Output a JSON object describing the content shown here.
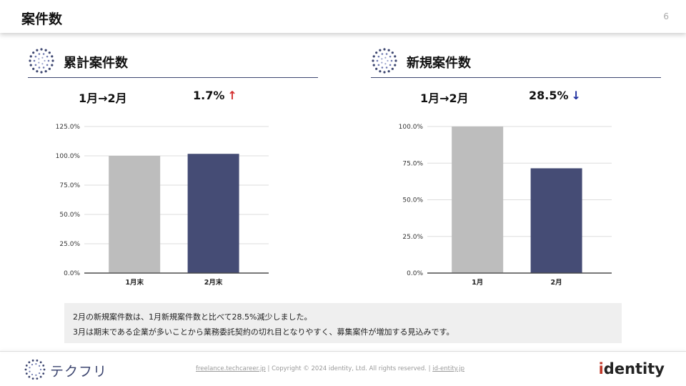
{
  "header": {
    "title": "案件数",
    "page_number": "6"
  },
  "colors": {
    "accent": "#3d4670",
    "bar_prev": "#bdbdbd",
    "bar_curr": "#454c75",
    "up": "#d32f2f",
    "down": "#1e2f9e"
  },
  "sections": [
    {
      "title": "累計案件数",
      "period": "1月→2月",
      "change": "1.7%",
      "direction": "up",
      "arrow": "↑",
      "chart_data": {
        "type": "bar",
        "categories": [
          "1月末",
          "2月末"
        ],
        "values": [
          100.0,
          101.7
        ],
        "yticks": [
          "0.0%",
          "25.0%",
          "50.0%",
          "75.0%",
          "100.0%",
          "125.0%"
        ],
        "ylim": [
          0,
          125
        ],
        "xlabel": "",
        "ylabel": "",
        "grid": true
      }
    },
    {
      "title": "新規案件数",
      "period": "1月→2月",
      "change": "28.5%",
      "direction": "down",
      "arrow": "↓",
      "chart_data": {
        "type": "bar",
        "categories": [
          "1月",
          "2月"
        ],
        "values": [
          100.0,
          71.5
        ],
        "yticks": [
          "0.0%",
          "25.0%",
          "50.0%",
          "75.0%",
          "100.0%"
        ],
        "ylim": [
          0,
          100
        ],
        "xlabel": "",
        "ylabel": "",
        "grid": true
      }
    }
  ],
  "note": {
    "line1": "2月の新規案件数は、1月新規案件数と比べて28.5%減少しました。",
    "line2": "3月は期末である企業が多いことから業務委託契約の切れ目となりやすく、募集案件が増加する見込みです。"
  },
  "footer": {
    "logo_text": "テクフリ",
    "link1": "freelance.techcareer.jp",
    "copyright": "Copyright © 2024 identity, Ltd. All rights reserved.",
    "link2": "id-entity.jp",
    "separator": "|",
    "brand": "identity"
  }
}
